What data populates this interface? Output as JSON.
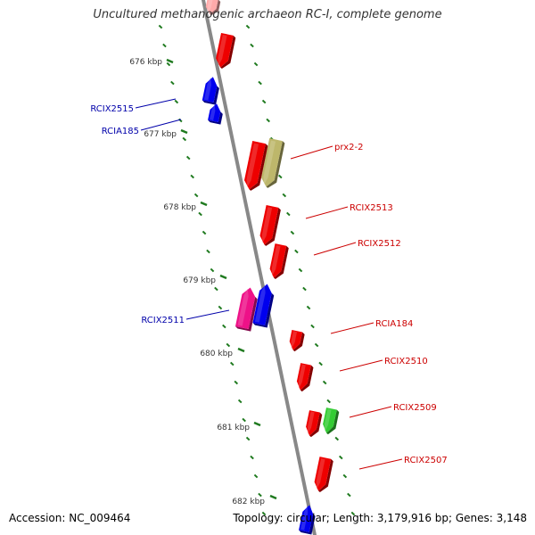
{
  "title": "Uncultured methanogenic archaeon RC-I, complete genome",
  "accession": "Accession: NC_009464",
  "topology": "Topology: circular; Length: 3,179,916 bp; Genes: 3,148",
  "colors": {
    "backbone": "#888888",
    "tick": "#1f7a1f",
    "forward_gene": "#ee0000",
    "reverse_gene": "#0000ee",
    "label_forward": "#cc0000",
    "label_reverse": "#0000aa"
  },
  "kbp_ticks": [
    {
      "label": "676 kbp"
    },
    {
      "label": "677 kbp"
    },
    {
      "label": "678 kbp"
    },
    {
      "label": "679 kbp"
    },
    {
      "label": "680 kbp"
    },
    {
      "label": "681 kbp"
    },
    {
      "label": "682 kbp"
    }
  ],
  "genes": [
    {
      "label": "",
      "color": "#ffaaaa",
      "strand": "+"
    },
    {
      "label": "",
      "color": "#ee0000",
      "strand": "+"
    },
    {
      "label": "RCIX2515",
      "color": "#0000ee",
      "strand": "-"
    },
    {
      "label": "RCIA185",
      "color": "#0000ee",
      "strand": "-"
    },
    {
      "label": "prx2-2",
      "color": "#bdb76b",
      "strand": "+"
    },
    {
      "label": "",
      "color": "#ee0000",
      "strand": "+"
    },
    {
      "label": "RCIX2513",
      "color": "#ee0000",
      "strand": "+"
    },
    {
      "label": "RCIX2512",
      "color": "#ee0000",
      "strand": "+"
    },
    {
      "label": "RCIX2511",
      "color": "#ee1188",
      "strand": "-"
    },
    {
      "label": "",
      "color": "#0000ee",
      "strand": "-"
    },
    {
      "label": "RCIA184",
      "color": "#ee0000",
      "strand": "+"
    },
    {
      "label": "RCIX2510",
      "color": "#ee0000",
      "strand": "+"
    },
    {
      "label": "RCIX2509",
      "color": "#33cc33",
      "strand": "+"
    },
    {
      "label": "",
      "color": "#ee0000",
      "strand": "+"
    },
    {
      "label": "RCIX2507",
      "color": "#ee0000",
      "strand": "+"
    },
    {
      "label": "",
      "color": "#0000ee",
      "strand": "-"
    }
  ]
}
